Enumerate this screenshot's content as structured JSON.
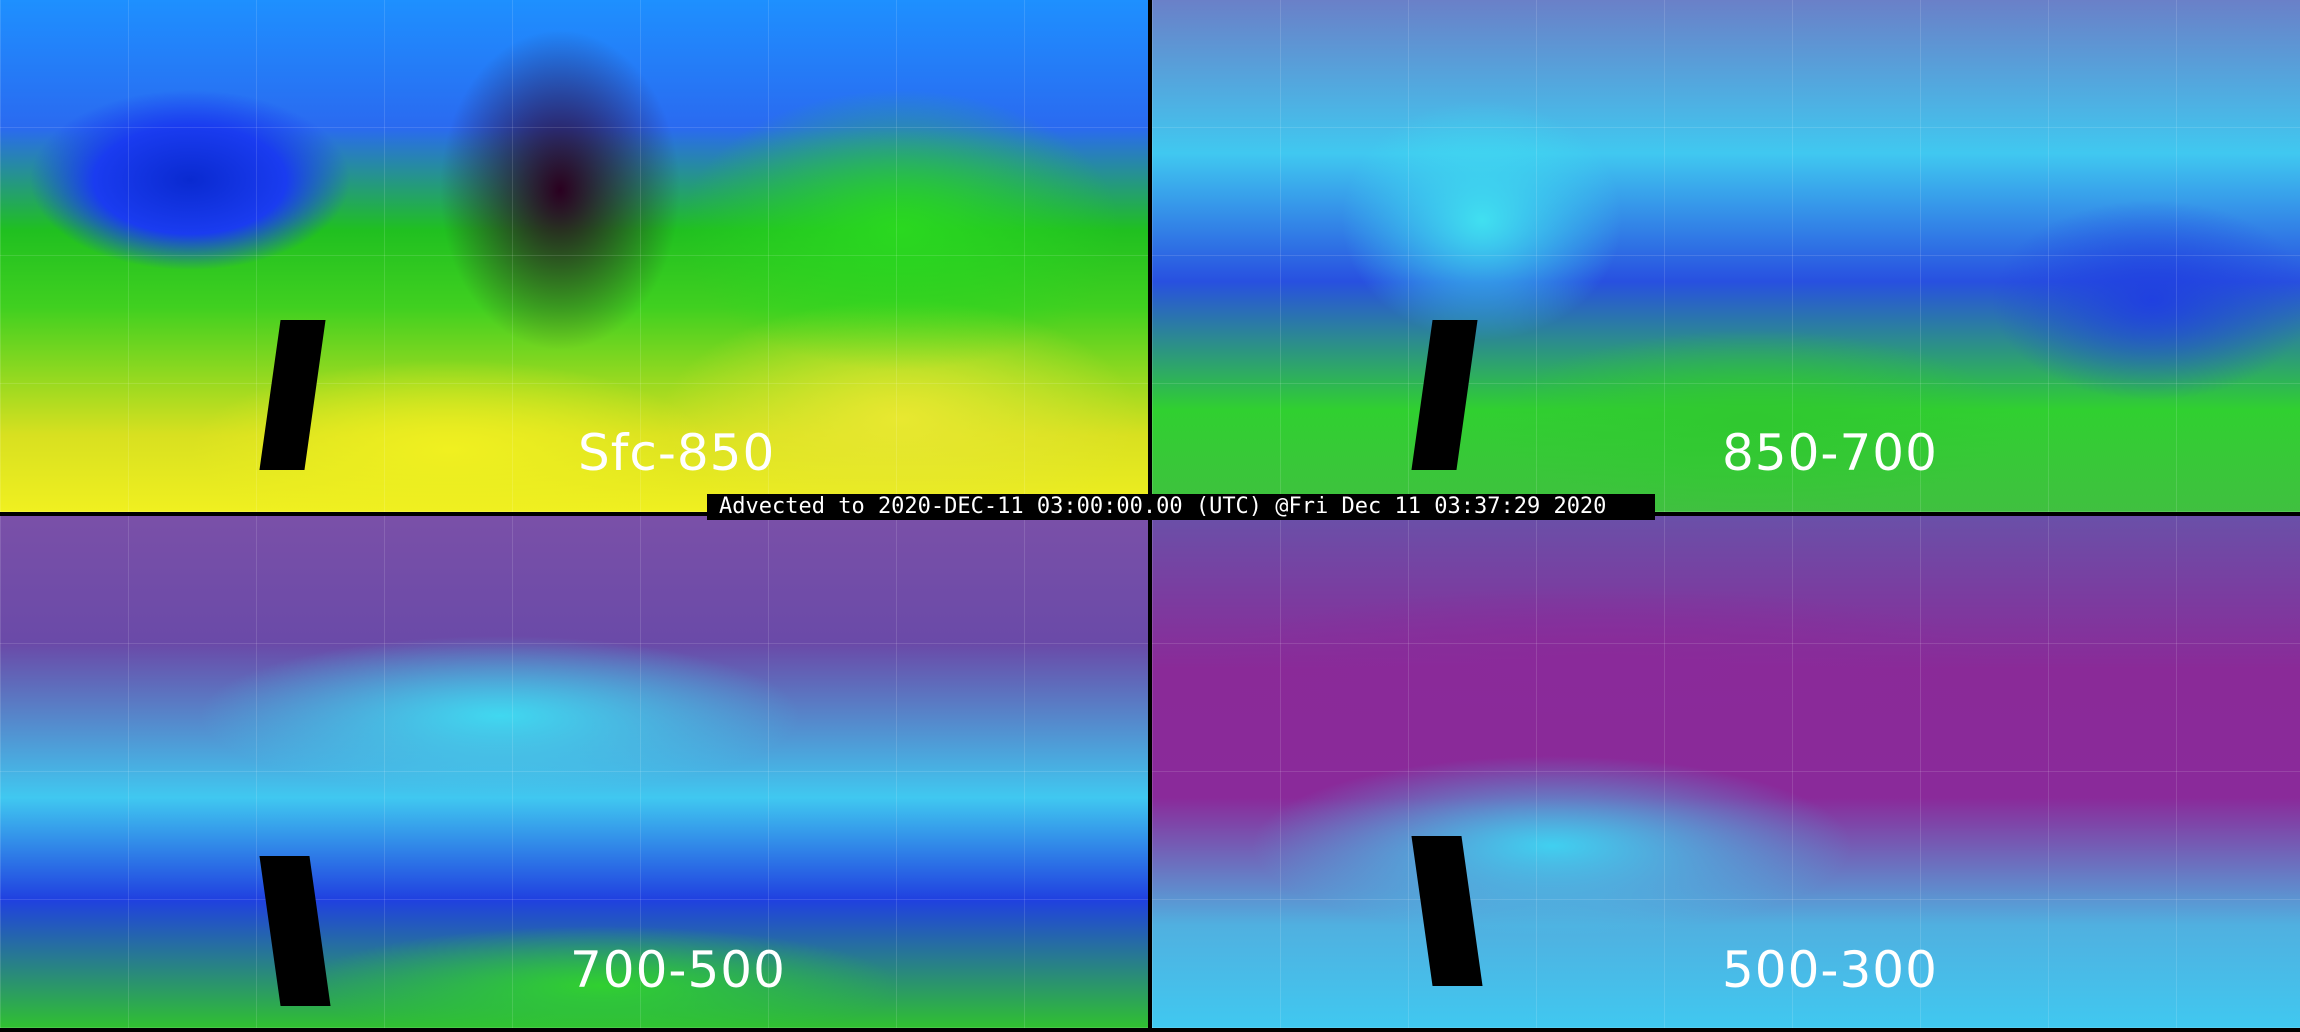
{
  "panels": [
    {
      "label": "Sfc-850"
    },
    {
      "label": "850-700"
    },
    {
      "label": "700-500"
    },
    {
      "label": "500-300"
    }
  ],
  "banner": {
    "text": "Advected to 2020-DEC-11 03:00:00.00 (UTC) @Fri Dec 11 03:37:29 2020"
  }
}
